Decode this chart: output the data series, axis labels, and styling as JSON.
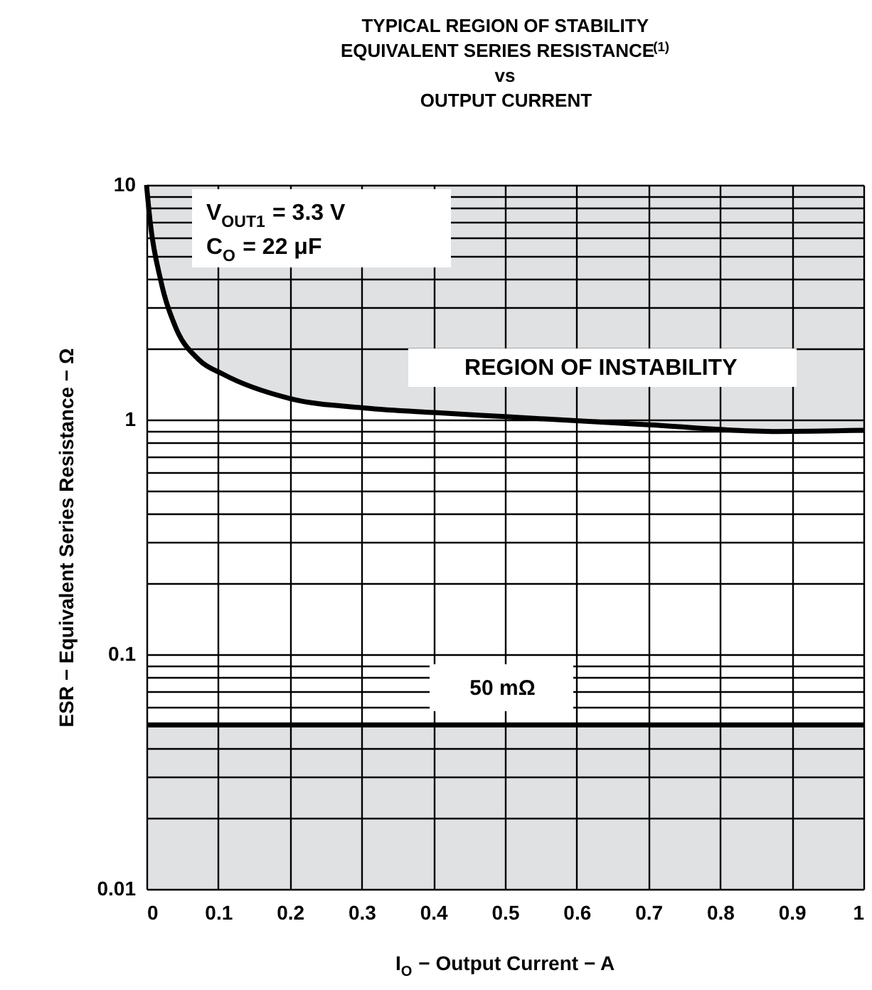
{
  "chart_data": {
    "type": "line",
    "title": [
      "TYPICAL REGION OF STABILITY",
      "EQUIVALENT SERIES RESISTANCE$^{(1)}$",
      "vs",
      "OUTPUT CURRENT"
    ],
    "xlabel": "I$_{O}$ − Output Current − A",
    "ylabel": "ESR − Equivalent Series Resistance − Ω",
    "x": [
      0,
      0.005,
      0.02,
      0.04,
      0.073,
      0.107,
      0.2,
      0.305,
      0.405,
      0.5,
      0.7,
      0.88,
      1.0
    ],
    "series": [
      {
        "color": "#000000",
        "values": [
          10,
          7,
          3.9,
          2.5,
          1.8,
          1.56,
          1.23,
          1.12,
          1.07,
          1.03,
          0.95,
          0.89,
          0.9
        ],
        "lower": [
          10,
          7,
          3.9,
          2.5,
          1.8,
          1.56,
          1.23,
          1.12,
          1.07,
          1.03,
          0.95,
          0.89,
          0.9
        ],
        "upper": [
          10,
          10,
          10,
          10,
          10,
          10,
          10,
          10,
          10,
          10,
          10,
          10,
          10
        ]
      }
    ],
    "xlim": [
      0,
      1
    ],
    "xticks": [
      0,
      0.1,
      0.2,
      0.3,
      0.4,
      0.5,
      0.6,
      0.7,
      0.8,
      0.9,
      1
    ],
    "log": true,
    "ylim": [
      0.01,
      10
    ],
    "yticks": [
      0.01,
      {
        "value": 0.02,
        "label": null
      },
      {
        "value": 0.03,
        "label": null
      },
      {
        "value": 0.04,
        "label": null
      },
      {
        "value": 0.05,
        "label": null
      },
      {
        "value": 0.06,
        "label": null
      },
      {
        "value": 0.07,
        "label": null
      },
      {
        "value": 0.08,
        "label": null
      },
      {
        "value": 0.09,
        "label": null
      },
      0.1,
      {
        "value": 0.2,
        "label": null
      },
      {
        "value": 0.3,
        "label": null
      },
      {
        "value": 0.4,
        "label": null
      },
      {
        "value": 0.5,
        "label": null
      },
      {
        "value": 0.6,
        "label": null
      },
      {
        "value": 0.7,
        "label": null
      },
      {
        "value": 0.8,
        "label": null
      },
      {
        "value": 0.9,
        "label": null
      },
      1,
      {
        "value": 2,
        "label": null
      },
      {
        "value": 3,
        "label": null
      },
      {
        "value": 4,
        "label": null
      },
      {
        "value": 5,
        "label": null
      },
      {
        "value": 6,
        "label": null
      },
      {
        "value": 7,
        "label": null
      },
      {
        "value": 8,
        "label": null
      },
      {
        "value": 9,
        "label": null
      },
      10
    ],
    "grid": true,
    "ref_lines": [
      {
        "axis": "y",
        "value": 0.05,
        "label": "50 mΩ",
        "color": "#000000"
      }
    ],
    "bands": [
      {
        "axis": "y",
        "from": 0.01,
        "to": 0.05,
        "color": "#e0e1e3"
      }
    ],
    "annotations": [
      "V$_{OUT1}$ = 3.3 V",
      "C$_{O}$ = 22 μF",
      "REGION OF INSTABILITY"
    ]
  }
}
